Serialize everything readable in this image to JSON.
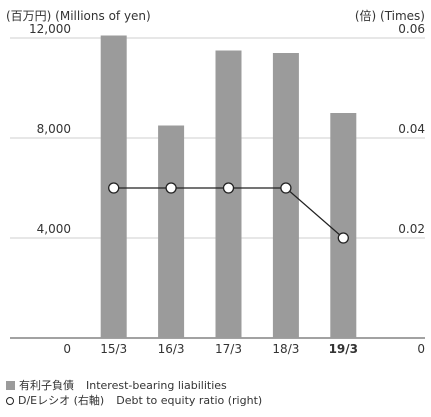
{
  "chart_data": {
    "type": "bar",
    "categories": [
      "15/3",
      "16/3",
      "17/3",
      "18/3",
      "19/3"
    ],
    "highlight_category": "19/3",
    "left_axis": {
      "label": "(百万円) (Millions of yen)",
      "range": [
        0,
        12000
      ],
      "ticks": [
        0,
        4000,
        8000,
        12000
      ],
      "tick_labels": [
        "0",
        "4,000",
        "8,000",
        "12,000"
      ]
    },
    "right_axis": {
      "label": "(倍) (Times)",
      "range": [
        0,
        0.06
      ],
      "ticks": [
        0,
        0.02,
        0.04,
        0.06
      ],
      "tick_labels": [
        "0",
        "0.02",
        "0.04",
        "0.06"
      ]
    },
    "series": [
      {
        "name": "有利子負債",
        "name_en": "Interest-bearing liabilities",
        "type": "bar",
        "axis": "left",
        "color": "#9b9b9b",
        "values": [
          12100,
          8500,
          11500,
          11400,
          9000
        ]
      },
      {
        "name": "D/Eレシオ (右軸)",
        "name_en": "Debt to equity ratio (right)",
        "type": "line",
        "axis": "right",
        "color": "#222222",
        "values": [
          0.03,
          0.03,
          0.03,
          0.03,
          0.02
        ]
      }
    ],
    "grid": true,
    "legend_position": "bottom-left"
  }
}
